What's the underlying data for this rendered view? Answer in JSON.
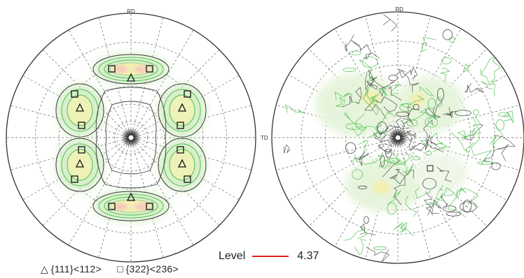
{
  "pole_figures": [
    {
      "top_label": "RD",
      "side_label": "TD",
      "description_markers": true
    },
    {
      "top_label": "RD",
      "side_label": ""
    }
  ],
  "legend": {
    "triangle_symbol": "△",
    "triangle_label": "{111}<112>",
    "square_symbol": "□",
    "square_label": "{322}<236>"
  },
  "level": {
    "label": "Level",
    "value": "4.37",
    "line_color": "#e02020"
  },
  "colors": {
    "circle": "#333333",
    "grid": "#666666",
    "contour_dark": "#3a3a3a",
    "contour_green": "#4fbf4f",
    "contour_light": "#b6e3a3",
    "highlight_yellow": "#f2efb0",
    "highlight_pink": "#f5c6c0"
  }
}
